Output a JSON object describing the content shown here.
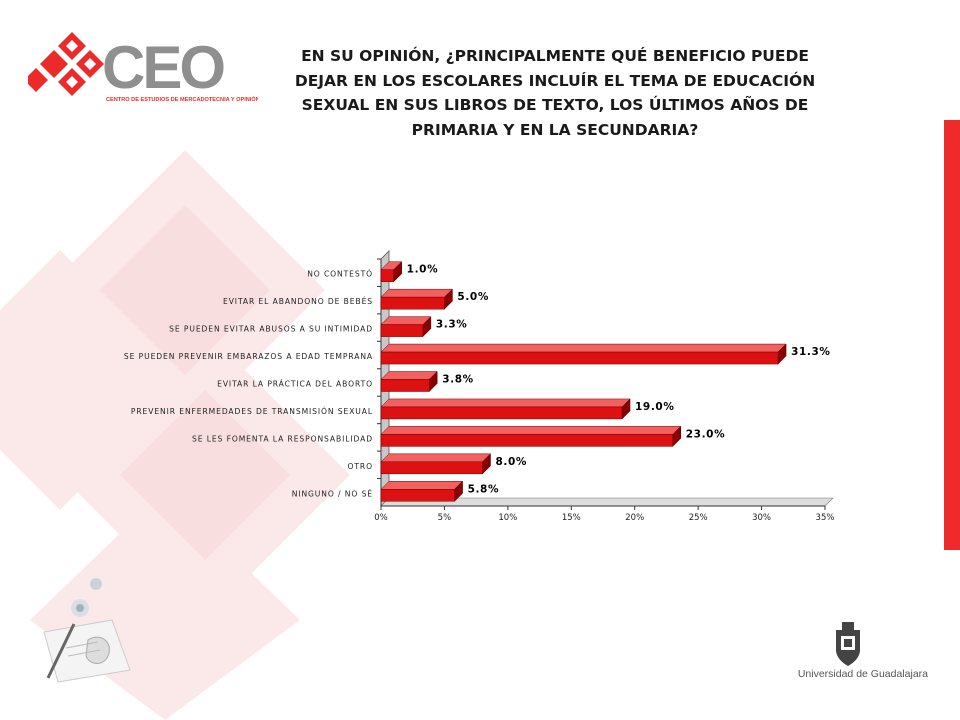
{
  "branding": {
    "logo_text": "CEO",
    "logo_subtitle": "CENTRO DE ESTUDIOS DE MERCADOTECNIA Y OPINIÓN",
    "university": "Universidad de Guadalajara"
  },
  "colors": {
    "bar": "#dd1111",
    "bar_top": "#f26060",
    "bar_side": "#8a0000",
    "accent": "#ee2a2a",
    "logo_red": "#ec2a2a",
    "logo_gray": "#8f8f8f"
  },
  "chart_data": {
    "type": "bar",
    "orientation": "horizontal",
    "title": "EN SU OPINIÓN, ¿PRINCIPALMENTE QUÉ BENEFICIO PUEDE DEJAR EN LOS ESCOLARES INCLUÍR EL TEMA DE EDUCACIÓN SEXUAL EN SUS LIBROS DE TEXTO, LOS ÚLTIMOS AÑOS DE PRIMARIA Y EN LA SECUNDARIA?",
    "categories": [
      "NO CONTESTÓ",
      "EVITAR EL ABANDONO DE BEBÉS",
      "SE PUEDEN EVITAR ABUSOS A SU INTIMIDAD",
      "SE PUEDEN PREVENIR EMBARAZOS A EDAD TEMPRANA",
      "EVITAR LA PRÁCTICA DEL ABORTO",
      "PREVENIR ENFERMEDADES DE TRANSMISIÓN SEXUAL",
      "SE LES FOMENTA LA RESPONSABILIDAD",
      "OTRO",
      "NINGUNO / NO SÉ"
    ],
    "values": [
      1.0,
      5.0,
      3.3,
      31.3,
      3.8,
      19.0,
      23.0,
      8.0,
      5.8
    ],
    "value_labels": [
      "1.0%",
      "5.0%",
      "3.3%",
      "31.3%",
      "3.8%",
      "19.0%",
      "23.0%",
      "8.0%",
      "5.8%"
    ],
    "xlim": [
      0,
      35
    ],
    "x_ticks": [
      0,
      5,
      10,
      15,
      20,
      25,
      30,
      35
    ],
    "x_tick_labels": [
      "0%",
      "5%",
      "10%",
      "15%",
      "20%",
      "25%",
      "30%",
      "35%"
    ],
    "grid": false,
    "legend": "none",
    "style": "3d"
  }
}
